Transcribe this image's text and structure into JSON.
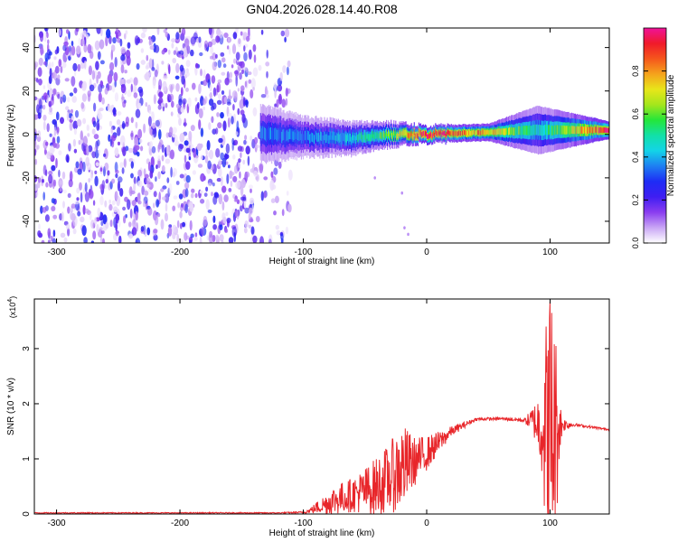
{
  "title": "GN04.2026.028.14.40.R08",
  "colors": {
    "snr_line": "#e8262a",
    "spectrogram_base": "#6a1ee6",
    "axis": "#000000"
  },
  "chart_data": [
    {
      "type": "heatmap",
      "name": "spectrogram",
      "xlabel": "Height of straight line (km)",
      "ylabel": "Frequency (Hz)",
      "xlim": [
        -318,
        148
      ],
      "ylim": [
        -50,
        49
      ],
      "xticks": [
        -300,
        -200,
        -100,
        0,
        100
      ],
      "yticks": [
        -40,
        -20,
        0,
        20,
        40
      ],
      "x_tick_labels": [
        "-300",
        "-200",
        "-100",
        "0",
        "100"
      ],
      "y_tick_labels": [
        "-40",
        "-20",
        "0",
        "20",
        "40"
      ],
      "noise_region_x": [
        -318,
        -110
      ],
      "signal_band": [
        {
          "x": -130,
          "freq_center": 0,
          "halfwidth_hz": 7,
          "amplitude": 0.35
        },
        {
          "x": -100,
          "freq_center": -1,
          "halfwidth_hz": 5,
          "amplitude": 0.35
        },
        {
          "x": -60,
          "freq_center": -2,
          "halfwidth_hz": 4,
          "amplitude": 0.45
        },
        {
          "x": -30,
          "freq_center": 0,
          "halfwidth_hz": 3,
          "amplitude": 0.6
        },
        {
          "x": 0,
          "freq_center": 0,
          "halfwidth_hz": 2,
          "amplitude": 0.95
        },
        {
          "x": 50,
          "freq_center": 1,
          "halfwidth_hz": 2,
          "amplitude": 0.75
        },
        {
          "x": 90,
          "freq_center": 2,
          "halfwidth_hz": 6,
          "amplitude": 0.45
        },
        {
          "x": 148,
          "freq_center": 2,
          "halfwidth_hz": 2,
          "amplitude": 0.95
        }
      ]
    },
    {
      "type": "line",
      "name": "snr",
      "xlabel": "Height of straight line (km)",
      "ylabel": "SNR (10 * v/v)",
      "exponent_label": "(x10",
      "exponent_value": "4",
      "exponent_close": ")",
      "xlim": [
        -318,
        148
      ],
      "ylim": [
        0,
        3.9
      ],
      "xticks": [
        -300,
        -200,
        -100,
        0,
        100
      ],
      "yticks": [
        0,
        1,
        2,
        3
      ],
      "x_tick_labels": [
        "-300",
        "-200",
        "-100",
        "0",
        "100"
      ],
      "y_tick_labels": [
        "0",
        "1",
        "2",
        "3"
      ],
      "envelope": {
        "x": [
          -318,
          -120,
          -100,
          -95,
          -75,
          -60,
          -45,
          -30,
          -20,
          -10,
          0,
          20,
          40,
          60,
          80,
          88,
          95,
          100,
          105,
          110,
          120,
          148
        ],
        "base": [
          0.02,
          0.02,
          0.03,
          0.06,
          0.25,
          0.35,
          0.45,
          0.65,
          0.85,
          0.95,
          1.1,
          1.5,
          1.72,
          1.73,
          1.7,
          1.68,
          1.55,
          1.5,
          1.55,
          1.62,
          1.62,
          1.53
        ],
        "amp": [
          0.01,
          0.01,
          0.02,
          0.05,
          0.3,
          0.35,
          0.55,
          0.7,
          0.9,
          0.5,
          0.35,
          0.1,
          0.03,
          0.03,
          0.05,
          0.4,
          1.1,
          2.2,
          1.2,
          0.15,
          0.03,
          0.02
        ]
      },
      "peak": {
        "x": 100,
        "y": 3.85
      }
    },
    {
      "type": "colorbar",
      "name": "colorbar",
      "label": "Normalized spectral amplitude",
      "range": [
        0,
        1
      ],
      "ticks": [
        0.0,
        0.2,
        0.4,
        0.6,
        0.8
      ],
      "tick_labels": [
        "0.0",
        "0.2",
        "0.4",
        "0.6",
        "0.8"
      ],
      "colormap": [
        "#ffffff",
        "#c9a6f5",
        "#8a3df0",
        "#3f1ef2",
        "#1e2cf5",
        "#1e7ff2",
        "#13d4e8",
        "#12e0a8",
        "#24e63a",
        "#a4e61c",
        "#e8e61a",
        "#f5a31c",
        "#f5561c",
        "#f01a2a",
        "#f0129a"
      ]
    }
  ]
}
